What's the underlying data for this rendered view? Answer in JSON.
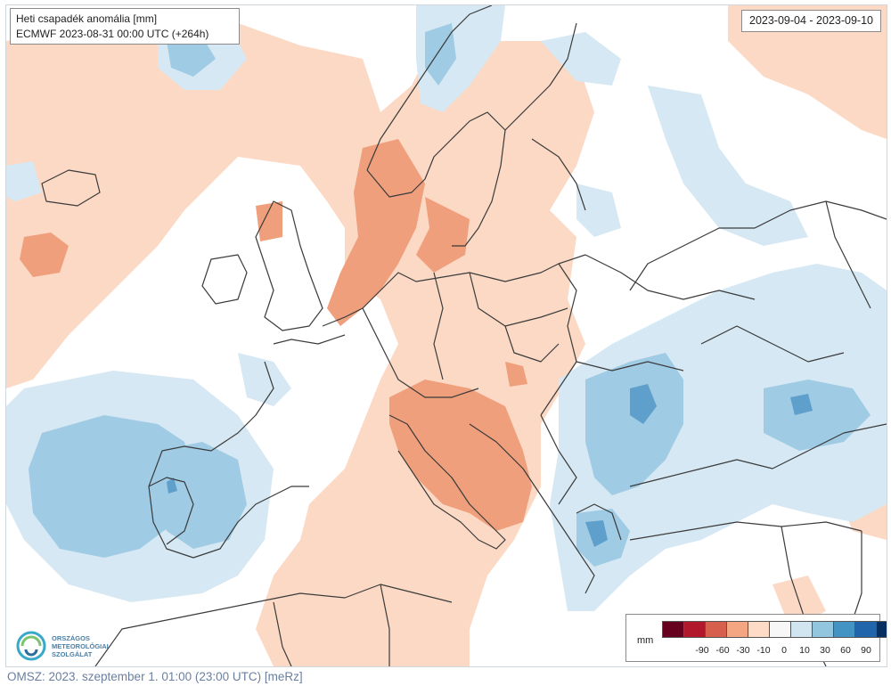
{
  "map": {
    "title": "Heti csapadék anomália [mm]",
    "model_run": "ECMWF 2023-08-31 00:00 UTC (+264h)",
    "date_range": "2023-09-04 - 2023-09-10"
  },
  "legend": {
    "unit": "mm",
    "classes": [
      {
        "color": "#67001f"
      },
      {
        "color": "#b2182b"
      },
      {
        "color": "#d6604d"
      },
      {
        "color": "#f4a582"
      },
      {
        "color": "#fddbc7"
      },
      {
        "color": "#f7f7f7"
      },
      {
        "color": "#d1e5f0"
      },
      {
        "color": "#92c5de"
      },
      {
        "color": "#4393c3"
      },
      {
        "color": "#2166ac"
      },
      {
        "color": "#053061"
      }
    ],
    "ticks": [
      "-90",
      "-60",
      "-30",
      "-10",
      "0",
      "10",
      "30",
      "60",
      "90"
    ]
  },
  "logo": {
    "line1": "ORSZÁGOS",
    "line2": "METEOROLÓGIAI",
    "line3": "SZOLGÁLAT"
  },
  "footer": "OMSZ: 2023. szeptember 1. 01:00 (23:00 UTC) [meRz]",
  "colors": {
    "dry_light": "#fbd9c4",
    "dry_medium": "#ef9f7c",
    "wet_light": "#d6e8f3",
    "wet_medium": "#9fcbe4",
    "wet_strong": "#5e9fcc",
    "border": "#3b3b3b"
  }
}
